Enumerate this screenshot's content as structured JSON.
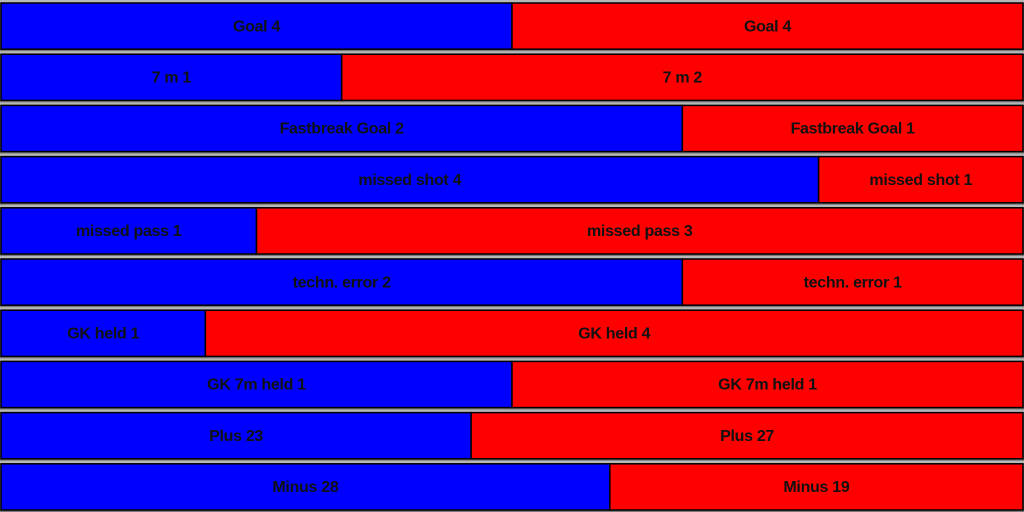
{
  "rows": [
    {
      "left": {
        "label": "Goal 4",
        "value": 4
      },
      "right": {
        "label": "Goal 4",
        "value": 4
      }
    },
    {
      "left": {
        "label": "7 m 1",
        "value": 1
      },
      "right": {
        "label": "7 m 2",
        "value": 2
      }
    },
    {
      "left": {
        "label": "Fastbreak Goal 2",
        "value": 2
      },
      "right": {
        "label": "Fastbreak Goal 1",
        "value": 1
      }
    },
    {
      "left": {
        "label": "missed shot 4",
        "value": 4
      },
      "right": {
        "label": "missed shot 1",
        "value": 1
      }
    },
    {
      "left": {
        "label": "missed pass 1",
        "value": 1
      },
      "right": {
        "label": "missed pass 3",
        "value": 3
      }
    },
    {
      "left": {
        "label": "techn. error 2",
        "value": 2
      },
      "right": {
        "label": "techn. error 1",
        "value": 1
      }
    },
    {
      "left": {
        "label": "GK held 1",
        "value": 1
      },
      "right": {
        "label": "GK held 4",
        "value": 4
      }
    },
    {
      "left": {
        "label": "GK 7m held 1",
        "value": 1
      },
      "right": {
        "label": "GK 7m held 1",
        "value": 1
      }
    },
    {
      "left": {
        "label": "Plus 23",
        "value": 23
      },
      "right": {
        "label": "Plus 27",
        "value": 27
      }
    },
    {
      "left": {
        "label": "Minus 28",
        "value": 28
      },
      "right": {
        "label": "Minus 19",
        "value": 19
      }
    }
  ],
  "colors": {
    "left": "#0000ff",
    "right": "#ff0000"
  }
}
